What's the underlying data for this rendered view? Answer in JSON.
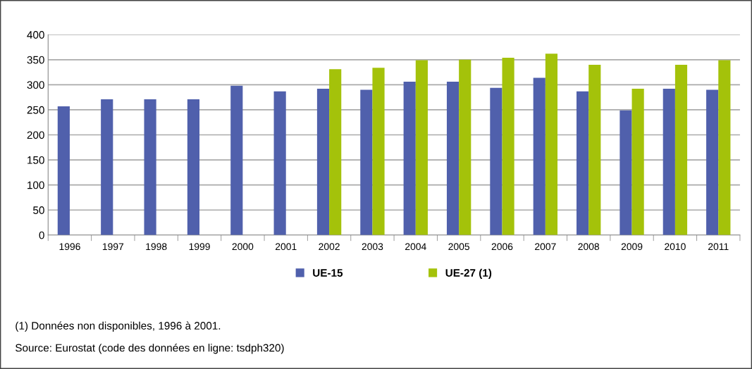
{
  "chart_data": {
    "type": "bar",
    "categories": [
      "1996",
      "1997",
      "1998",
      "1999",
      "2000",
      "2001",
      "2002",
      "2003",
      "2004",
      "2005",
      "2006",
      "2007",
      "2008",
      "2009",
      "2010",
      "2011"
    ],
    "series": [
      {
        "name": "UE-15",
        "color": "#5060ac",
        "values": [
          257,
          271,
          271,
          271,
          298,
          287,
          292,
          290,
          306,
          306,
          294,
          314,
          287,
          249,
          292,
          290
        ]
      },
      {
        "name": "UE-27 (1)",
        "color": "#a4c20a",
        "values": [
          null,
          null,
          null,
          null,
          null,
          null,
          331,
          334,
          349,
          350,
          354,
          362,
          340,
          292,
          340,
          349
        ]
      }
    ],
    "ylim": [
      0,
      400
    ],
    "yticks": [
      0,
      50,
      100,
      150,
      200,
      250,
      300,
      350,
      400
    ],
    "grid": "y",
    "legend": "bottom",
    "annotations": [
      "(1) Données non disponibles, 1996 à 2001.",
      "Source: Eurostat (code des données en ligne: tsdph320)"
    ]
  }
}
